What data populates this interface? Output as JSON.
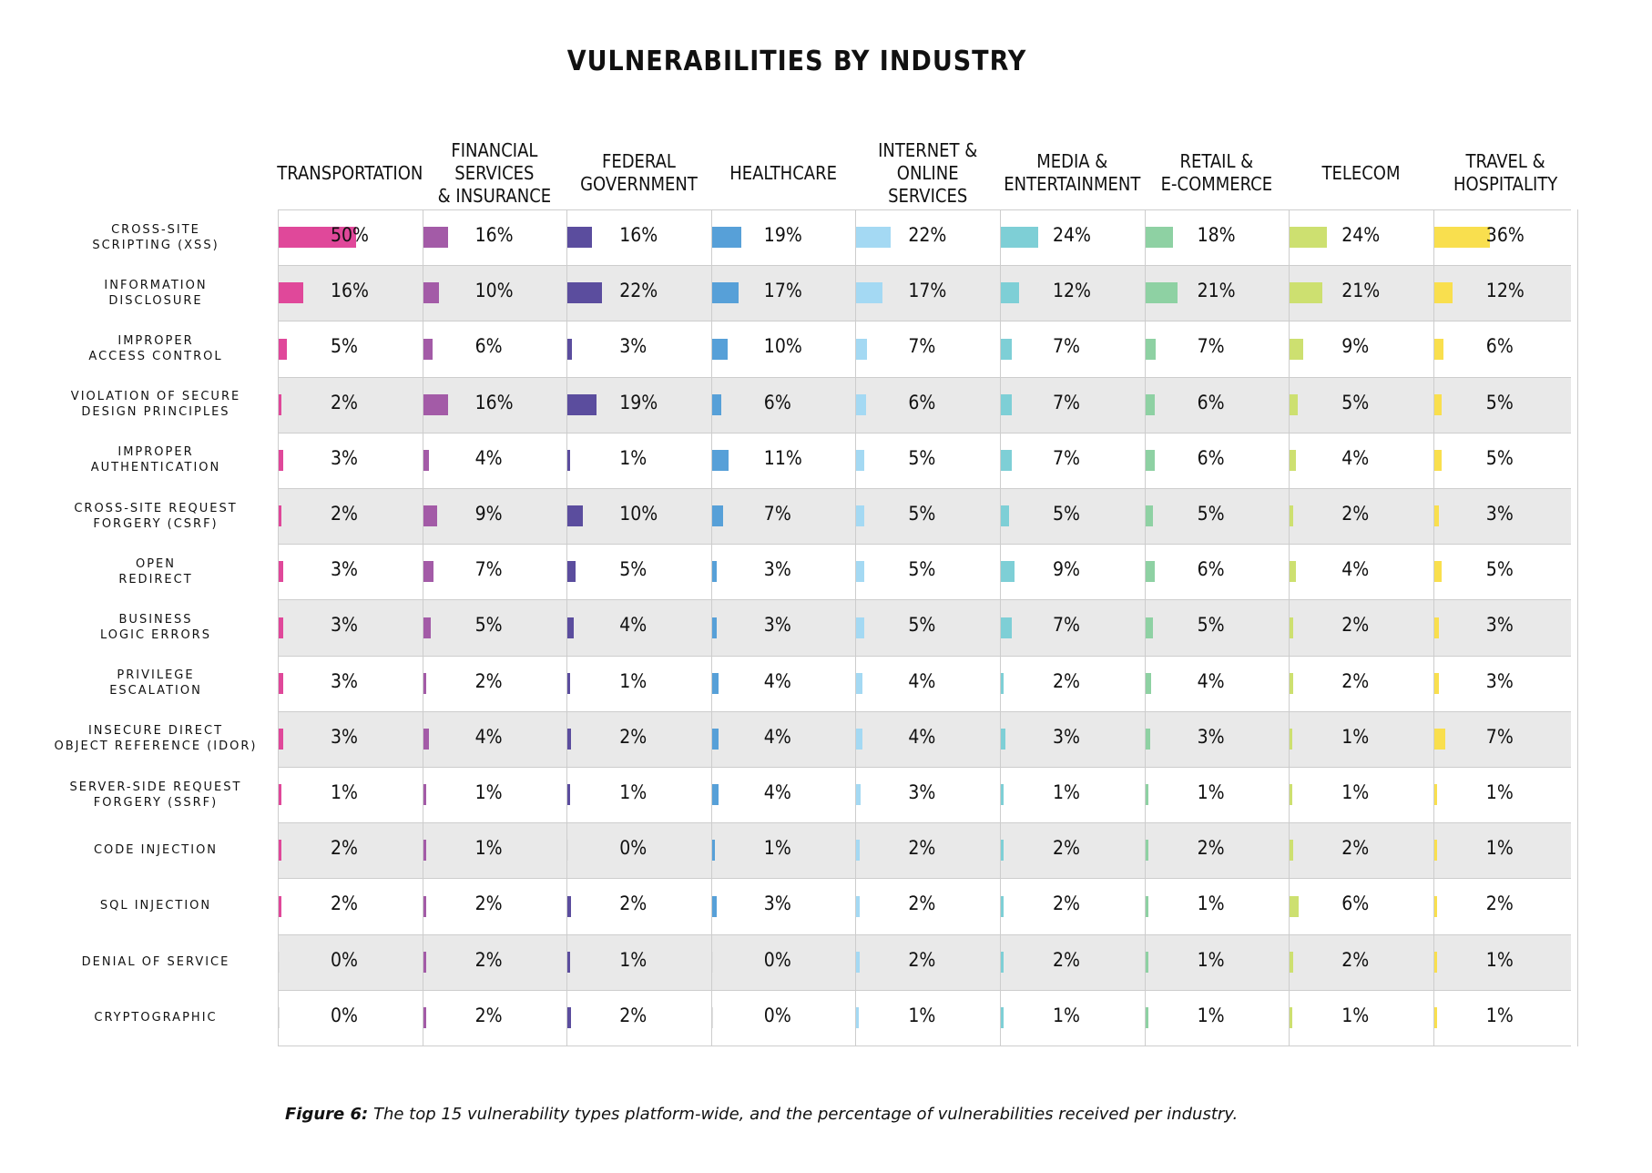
{
  "chart_data": {
    "type": "table",
    "title": "VULNERABILITIES BY INDUSTRY",
    "unit": "%",
    "industries": [
      "TRANSPORTATION",
      "FINANCIAL SERVICES\n& INSURANCE",
      "FEDERAL\nGOVERNMENT",
      "HEALTHCARE",
      "INTERNET &\nONLINE SERVICES",
      "MEDIA &\nENTERTAINMENT",
      "RETAIL &\nE-COMMERCE",
      "TELECOM",
      "TRAVEL &\nHOSPITALITY"
    ],
    "colors": [
      "#e0489a",
      "#a35ba7",
      "#5b4d9e",
      "#57a0d8",
      "#a4d9f3",
      "#7ecfd6",
      "#8ed1a3",
      "#cde070",
      "#f9df4e"
    ],
    "vulnerability_types": [
      "CROSS-SITE\nSCRIPTING (XSS)",
      "INFORMATION\nDISCLOSURE",
      "IMPROPER\nACCESS CONTROL",
      "VIOLATION OF SECURE\nDESIGN PRINCIPLES",
      "IMPROPER\nAUTHENTICATION",
      "CROSS-SITE REQUEST\nFORGERY (CSRF)",
      "OPEN\nREDIRECT",
      "BUSINESS\nLOGIC ERRORS",
      "PRIVILEGE\nESCALATION",
      "INSECURE DIRECT\nOBJECT REFERENCE (IDOR)",
      "SERVER-SIDE REQUEST\nFORGERY (SSRF)",
      "CODE INJECTION",
      "SQL INJECTION",
      "DENIAL OF SERVICE",
      "CRYPTOGRAPHIC"
    ],
    "values": [
      [
        50,
        16,
        16,
        19,
        22,
        24,
        18,
        24,
        36
      ],
      [
        16,
        10,
        22,
        17,
        17,
        12,
        21,
        21,
        12
      ],
      [
        5,
        6,
        3,
        10,
        7,
        7,
        7,
        9,
        6
      ],
      [
        2,
        16,
        19,
        6,
        6,
        7,
        6,
        5,
        5
      ],
      [
        3,
        4,
        1,
        11,
        5,
        7,
        6,
        4,
        5
      ],
      [
        2,
        9,
        10,
        7,
        5,
        5,
        5,
        2,
        3
      ],
      [
        3,
        7,
        5,
        3,
        5,
        9,
        6,
        4,
        5
      ],
      [
        3,
        5,
        4,
        3,
        5,
        7,
        5,
        2,
        3
      ],
      [
        3,
        2,
        1,
        4,
        4,
        2,
        4,
        2,
        3
      ],
      [
        3,
        4,
        2,
        4,
        4,
        3,
        3,
        1,
        7
      ],
      [
        1,
        1,
        1,
        4,
        3,
        1,
        1,
        1,
        1
      ],
      [
        2,
        1,
        0,
        1,
        2,
        2,
        2,
        2,
        1
      ],
      [
        2,
        2,
        2,
        3,
        2,
        2,
        1,
        6,
        2
      ],
      [
        0,
        2,
        1,
        0,
        2,
        2,
        1,
        2,
        1
      ],
      [
        0,
        2,
        2,
        0,
        1,
        1,
        1,
        1,
        1
      ]
    ]
  },
  "caption": {
    "label": "Figure 6:",
    "text": " The top 15 vulnerability types platform-wide, and the percentage of vulnerabilities received per industry."
  }
}
